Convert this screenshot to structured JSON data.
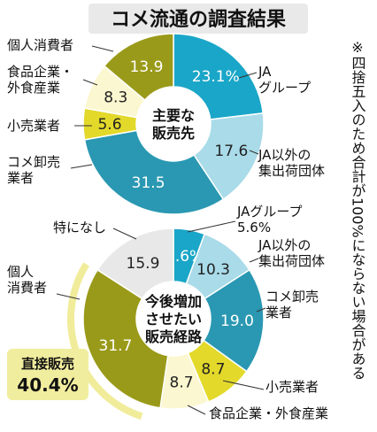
{
  "title": "コメ流通の調査結果",
  "note": "※四捨五入のため合計が100%にならない場合がある",
  "colors": {
    "ja": "#1aa6c8",
    "ja_other": "#a9dbe9",
    "oroshi": "#2a98b2",
    "kouri": "#e3d92a",
    "food": "#fbf7d0",
    "kojin": "#9a9a1a",
    "none": "#e8e8e8",
    "ring": "#f0ec9a",
    "background_panel": "#e9e9e9"
  },
  "chart_data": [
    {
      "type": "pie",
      "title": "主要な販売先",
      "center_label": [
        "主要な",
        "販売先"
      ],
      "categories": [
        "JAグループ",
        "JA以外の集出荷団体",
        "コメ卸売業者",
        "小売業者",
        "食品企業・外食産業",
        "個人消費者"
      ],
      "values": [
        23.1,
        17.6,
        31.5,
        5.6,
        8.3,
        13.9
      ],
      "value_labels": [
        "23.1%",
        "17.6",
        "31.5",
        "5.6",
        "8.3",
        "13.9"
      ],
      "outer_labels": [
        [
          "JA",
          "グループ"
        ],
        [
          "JA以外の",
          "集出荷団体"
        ],
        [
          "コメ卸売",
          "業者"
        ],
        [
          "小売業者"
        ],
        [
          "食品企業・",
          "外食産業"
        ],
        [
          "個人消費者"
        ]
      ]
    },
    {
      "type": "pie",
      "title": "今後増加させたい販売経路",
      "center_label": [
        "今後増加",
        "させたい",
        "販売経路"
      ],
      "categories": [
        "JAグループ",
        "JA以外の集出荷団体",
        "コメ卸売業者",
        "小売業者",
        "食品企業・外食産業",
        "個人消費者",
        "特になし"
      ],
      "values": [
        5.6,
        10.3,
        19.0,
        8.7,
        8.7,
        31.7,
        15.9
      ],
      "value_labels": [
        "5.6%",
        "10.3",
        "19.0",
        "8.7",
        "8.7",
        "31.7",
        "15.9"
      ],
      "outer_labels": [
        [
          "JAグループ",
          "5.6%"
        ],
        [
          "JA以外の",
          "集出荷団体"
        ],
        [
          "コメ卸売",
          "業者"
        ],
        [
          "小売業者"
        ],
        [
          "食品企業・外食産業"
        ],
        [
          "個人",
          "消費者"
        ],
        [
          "特になし"
        ]
      ],
      "highlight": {
        "label": "直接販売",
        "value": "40.4%"
      }
    }
  ]
}
